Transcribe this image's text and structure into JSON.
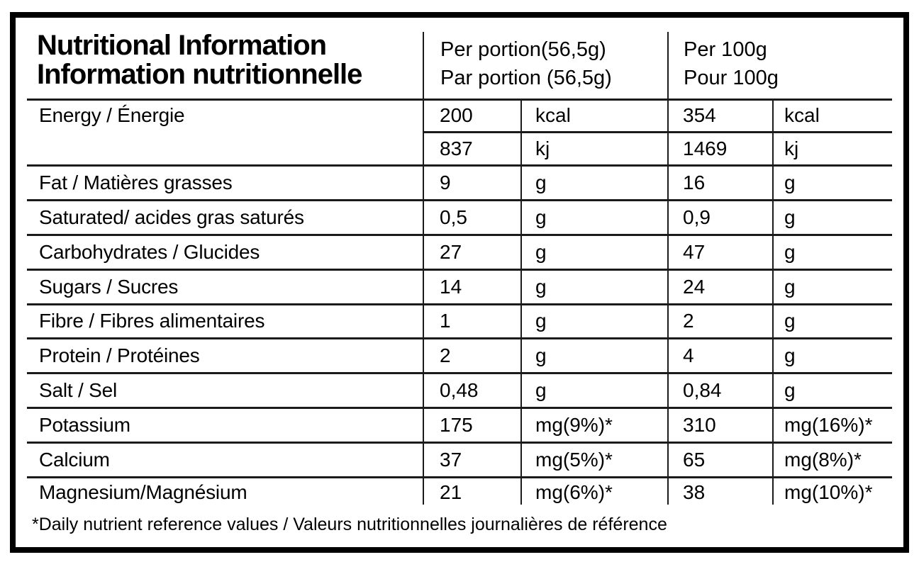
{
  "header": {
    "title": "Nutritional Information\nInformation nutritionnelle",
    "col_per_portion": "Per portion(56,5g)\nPar portion (56,5g)",
    "col_per_100g": "Per 100g\nPour 100g"
  },
  "table": {
    "rows": [
      {
        "label": "Energy / Énergie",
        "lines": [
          {
            "portion_value": "200",
            "portion_unit": "kcal",
            "per100_value": "354",
            "per100_unit": "kcal"
          },
          {
            "portion_value": "837",
            "portion_unit": "kj",
            "per100_value": "1469",
            "per100_unit": "kj"
          }
        ]
      },
      {
        "label": "Fat / Matières grasses",
        "lines": [
          {
            "portion_value": "9",
            "portion_unit": "g",
            "per100_value": "16",
            "per100_unit": "g"
          }
        ]
      },
      {
        "label": "Saturated/ acides gras saturés",
        "lines": [
          {
            "portion_value": "0,5",
            "portion_unit": "g",
            "per100_value": "0,9",
            "per100_unit": "g"
          }
        ]
      },
      {
        "label": "Carbohydrates / Glucides",
        "lines": [
          {
            "portion_value": "27",
            "portion_unit": "g",
            "per100_value": "47",
            "per100_unit": "g"
          }
        ]
      },
      {
        "label": "Sugars / Sucres",
        "lines": [
          {
            "portion_value": "14",
            "portion_unit": "g",
            "per100_value": "24",
            "per100_unit": "g"
          }
        ]
      },
      {
        "label": "Fibre / Fibres alimentaires",
        "lines": [
          {
            "portion_value": "1",
            "portion_unit": "g",
            "per100_value": "2",
            "per100_unit": "g"
          }
        ]
      },
      {
        "label": "Protein / Protéines",
        "lines": [
          {
            "portion_value": "2",
            "portion_unit": "g",
            "per100_value": "4",
            "per100_unit": "g"
          }
        ]
      },
      {
        "label": "Salt / Sel",
        "lines": [
          {
            "portion_value": "0,48",
            "portion_unit": "g",
            "per100_value": "0,84",
            "per100_unit": "g"
          }
        ]
      },
      {
        "label": "Potassium",
        "lines": [
          {
            "portion_value": "175",
            "portion_unit": "mg(9%)*",
            "per100_value": "310",
            "per100_unit": "mg(16%)*"
          }
        ]
      },
      {
        "label": "Calcium",
        "lines": [
          {
            "portion_value": "37",
            "portion_unit": "mg(5%)*",
            "per100_value": "65",
            "per100_unit": "mg(8%)*"
          }
        ]
      },
      {
        "label": "Magnesium/Magnésium",
        "lines": [
          {
            "portion_value": "21",
            "portion_unit": "mg(6%)*",
            "per100_value": "38",
            "per100_unit": "mg(10%)*"
          }
        ]
      }
    ]
  },
  "footnote": "*Daily nutrient reference values / Valeurs nutritionnelles journalières de référence",
  "colors": {
    "background": "#ffffff",
    "text": "#000000",
    "line": "#1b1b1b"
  }
}
